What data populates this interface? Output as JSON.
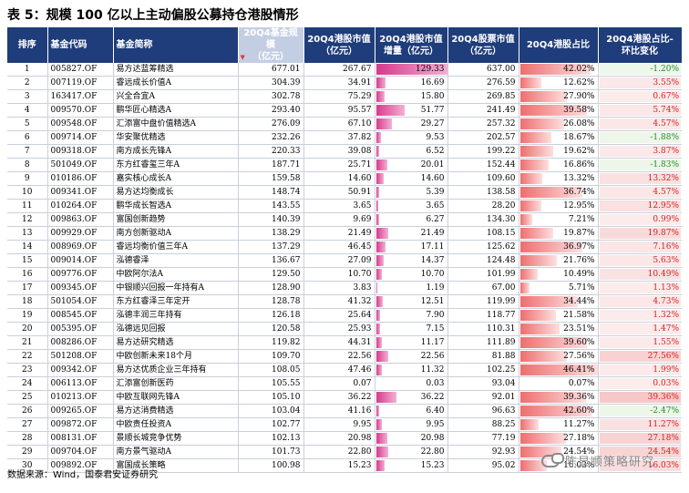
{
  "title": "表 5：规模 100 亿以上主动偏股公募持仓港股情形",
  "columns": {
    "rank": "排序",
    "code": "基金代码",
    "name": "基金简称",
    "scale": "20Q4基金规模\n（亿元）",
    "hk_value": "20Q4港股市值\n（亿元）",
    "hk_increase": "20Q4港股市值\n增量（亿元）",
    "stock_value": "20Q4股票市值\n（亿元）",
    "hk_ratio": "20Q4港股占比",
    "hk_ratio_change": "20Q4港股占比-\n环比变化"
  },
  "rows": [
    {
      "rank": "1",
      "code": "005827.OF",
      "name": "易方达蓝筹精选",
      "scale": "677.01",
      "hk_value": "267.67",
      "hk_increase": "129.33",
      "stock_value": "637.00",
      "hk_ratio": "42.02%",
      "hk_ratio_change": "-1.20%"
    },
    {
      "rank": "2",
      "code": "007119.OF",
      "name": "睿远成长价值A",
      "scale": "304.39",
      "hk_value": "34.91",
      "hk_increase": "16.69",
      "stock_value": "276.59",
      "hk_ratio": "12.62%",
      "hk_ratio_change": "3.55%"
    },
    {
      "rank": "3",
      "code": "163417.OF",
      "name": "兴全合宜A",
      "scale": "302.78",
      "hk_value": "75.29",
      "hk_increase": "15.80",
      "stock_value": "269.85",
      "hk_ratio": "27.90%",
      "hk_ratio_change": "0.67%"
    },
    {
      "rank": "4",
      "code": "009570.OF",
      "name": "鹏华匠心精选A",
      "scale": "293.40",
      "hk_value": "95.57",
      "hk_increase": "51.77",
      "stock_value": "241.49",
      "hk_ratio": "39.58%",
      "hk_ratio_change": "5.74%"
    },
    {
      "rank": "5",
      "code": "009548.OF",
      "name": "汇添富中盘价值精选A",
      "scale": "276.09",
      "hk_value": "67.10",
      "hk_increase": "29.27",
      "stock_value": "257.32",
      "hk_ratio": "26.08%",
      "hk_ratio_change": "4.57%"
    },
    {
      "rank": "6",
      "code": "009714.OF",
      "name": "华安聚优精选",
      "scale": "232.26",
      "hk_value": "37.82",
      "hk_increase": "9.53",
      "stock_value": "202.57",
      "hk_ratio": "18.67%",
      "hk_ratio_change": "-1.88%"
    },
    {
      "rank": "7",
      "code": "009318.OF",
      "name": "南方成长先锋A",
      "scale": "220.33",
      "hk_value": "39.08",
      "hk_increase": "6.52",
      "stock_value": "199.22",
      "hk_ratio": "19.62%",
      "hk_ratio_change": "3.87%"
    },
    {
      "rank": "8",
      "code": "501049.OF",
      "name": "东方红睿玺三年A",
      "scale": "187.71",
      "hk_value": "25.71",
      "hk_increase": "20.01",
      "stock_value": "152.44",
      "hk_ratio": "16.86%",
      "hk_ratio_change": "-1.83%"
    },
    {
      "rank": "9",
      "code": "010186.OF",
      "name": "嘉实核心成长A",
      "scale": "159.58",
      "hk_value": "14.60",
      "hk_increase": "14.60",
      "stock_value": "109.60",
      "hk_ratio": "13.32%",
      "hk_ratio_change": "13.32%"
    },
    {
      "rank": "10",
      "code": "009341.OF",
      "name": "易方达均衡成长",
      "scale": "148.74",
      "hk_value": "50.91",
      "hk_increase": "5.39",
      "stock_value": "138.58",
      "hk_ratio": "36.74%",
      "hk_ratio_change": "4.57%"
    },
    {
      "rank": "11",
      "code": "010264.OF",
      "name": "鹏华成长智选A",
      "scale": "143.55",
      "hk_value": "3.65",
      "hk_increase": "3.65",
      "stock_value": "28.20",
      "hk_ratio": "12.95%",
      "hk_ratio_change": "12.95%"
    },
    {
      "rank": "12",
      "code": "009863.OF",
      "name": "富国创新趋势",
      "scale": "140.39",
      "hk_value": "9.69",
      "hk_increase": "6.27",
      "stock_value": "134.30",
      "hk_ratio": "7.21%",
      "hk_ratio_change": "0.99%"
    },
    {
      "rank": "13",
      "code": "009929.OF",
      "name": "南方创新驱动A",
      "scale": "138.29",
      "hk_value": "21.49",
      "hk_increase": "21.49",
      "stock_value": "108.15",
      "hk_ratio": "19.87%",
      "hk_ratio_change": "19.87%"
    },
    {
      "rank": "14",
      "code": "008969.OF",
      "name": "睿远均衡价值三年A",
      "scale": "137.29",
      "hk_value": "46.45",
      "hk_increase": "17.11",
      "stock_value": "125.62",
      "hk_ratio": "36.97%",
      "hk_ratio_change": "7.16%"
    },
    {
      "rank": "15",
      "code": "009014.OF",
      "name": "泓德睿泽",
      "scale": "136.67",
      "hk_value": "27.09",
      "hk_increase": "14.37",
      "stock_value": "124.48",
      "hk_ratio": "21.76%",
      "hk_ratio_change": "5.63%"
    },
    {
      "rank": "16",
      "code": "009776.OF",
      "name": "中欧阿尔法A",
      "scale": "129.50",
      "hk_value": "10.70",
      "hk_increase": "10.70",
      "stock_value": "101.99",
      "hk_ratio": "10.49%",
      "hk_ratio_change": "10.49%"
    },
    {
      "rank": "17",
      "code": "009345.OF",
      "name": "中银顺兴回报一年持有A",
      "scale": "128.90",
      "hk_value": "3.83",
      "hk_increase": "1.19",
      "stock_value": "67.00",
      "hk_ratio": "5.71%",
      "hk_ratio_change": "1.13%"
    },
    {
      "rank": "18",
      "code": "501054.OF",
      "name": "东方红睿泽三年定开",
      "scale": "128.78",
      "hk_value": "41.32",
      "hk_increase": "12.51",
      "stock_value": "119.99",
      "hk_ratio": "34.44%",
      "hk_ratio_change": "4.73%"
    },
    {
      "rank": "19",
      "code": "008545.OF",
      "name": "泓德丰润三年持有",
      "scale": "126.18",
      "hk_value": "25.64",
      "hk_increase": "7.90",
      "stock_value": "118.77",
      "hk_ratio": "21.58%",
      "hk_ratio_change": "1.32%"
    },
    {
      "rank": "20",
      "code": "005395.OF",
      "name": "泓德远见回报",
      "scale": "120.58",
      "hk_value": "25.93",
      "hk_increase": "7.15",
      "stock_value": "110.31",
      "hk_ratio": "23.51%",
      "hk_ratio_change": "1.47%"
    },
    {
      "rank": "21",
      "code": "008286.OF",
      "name": "易方达研究精选",
      "scale": "119.82",
      "hk_value": "44.31",
      "hk_increase": "11.17",
      "stock_value": "111.89",
      "hk_ratio": "39.60%",
      "hk_ratio_change": "1.55%"
    },
    {
      "rank": "22",
      "code": "501208.OF",
      "name": "中欧创新未来18个月",
      "scale": "109.70",
      "hk_value": "22.56",
      "hk_increase": "22.56",
      "stock_value": "81.88",
      "hk_ratio": "27.56%",
      "hk_ratio_change": "27.56%"
    },
    {
      "rank": "23",
      "code": "009342.OF",
      "name": "易方达优质企业三年持有",
      "scale": "108.05",
      "hk_value": "47.46",
      "hk_increase": "11.32",
      "stock_value": "102.25",
      "hk_ratio": "46.41%",
      "hk_ratio_change": "1.99%"
    },
    {
      "rank": "24",
      "code": "006113.OF",
      "name": "汇添富创新医药",
      "scale": "105.55",
      "hk_value": "0.07",
      "hk_increase": "0.03",
      "stock_value": "93.04",
      "hk_ratio": "0.07%",
      "hk_ratio_change": "0.03%"
    },
    {
      "rank": "25",
      "code": "010213.OF",
      "name": "中欧互联网先锋A",
      "scale": "105.10",
      "hk_value": "36.22",
      "hk_increase": "36.22",
      "stock_value": "92.01",
      "hk_ratio": "39.36%",
      "hk_ratio_change": "39.36%"
    },
    {
      "rank": "26",
      "code": "009265.OF",
      "name": "易方达消费精选",
      "scale": "103.04",
      "hk_value": "41.16",
      "hk_increase": "6.40",
      "stock_value": "96.63",
      "hk_ratio": "42.60%",
      "hk_ratio_change": "-2.47%"
    },
    {
      "rank": "27",
      "code": "009872.OF",
      "name": "中欧责任投资A",
      "scale": "102.77",
      "hk_value": "9.95",
      "hk_increase": "9.95",
      "stock_value": "88.25",
      "hk_ratio": "11.27%",
      "hk_ratio_change": "11.27%"
    },
    {
      "rank": "28",
      "code": "008131.OF",
      "name": "景顺长城竞争优势",
      "scale": "102.13",
      "hk_value": "20.98",
      "hk_increase": "20.98",
      "stock_value": "77.19",
      "hk_ratio": "27.18%",
      "hk_ratio_change": "27.18%"
    },
    {
      "rank": "29",
      "code": "009704.OF",
      "name": "南方景气驱动A",
      "scale": "101.73",
      "hk_value": "22.80",
      "hk_increase": "22.80",
      "stock_value": "92.93",
      "hk_ratio": "24.54%",
      "hk_ratio_change": "24.54%"
    },
    {
      "rank": "30",
      "code": "009892.OF",
      "name": "富国成长策略",
      "scale": "100.98",
      "hk_value": "15.23",
      "hk_increase": "15.23",
      "stock_value": "95.02",
      "hk_ratio": "16.03%",
      "hk_ratio_change": "16.03%"
    }
  ],
  "footer": "数据来源：Wind，国泰君安证券研究",
  "watermark": "陈显顺策略研究",
  "colors": {
    "header_bg": "#1f3d7a",
    "scale_header_bg": "#c4cee3",
    "hk_value_bar": "#d63b8c",
    "hk_ratio_bar": "#f08a8a",
    "change_positive": "#f6c8c8",
    "change_negative": "#cfe8c6"
  }
}
